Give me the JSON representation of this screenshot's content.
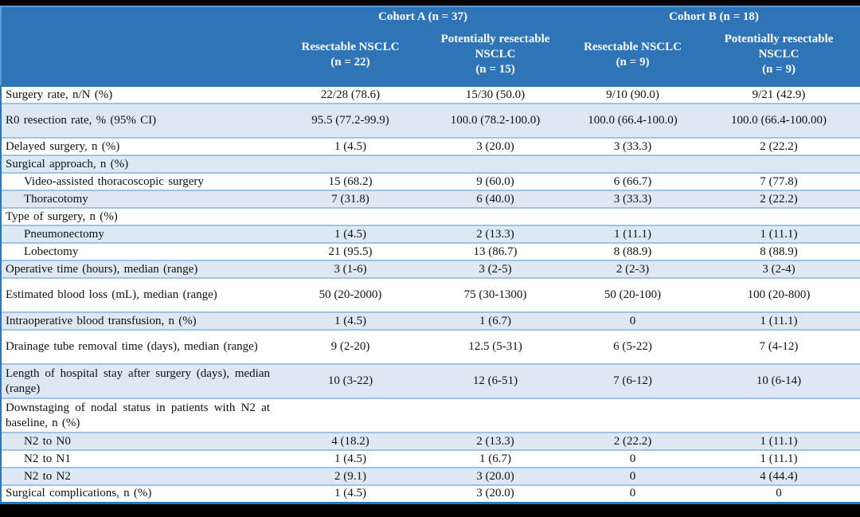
{
  "colors": {
    "header_bg": "#3074B8",
    "header_border": "#5B9BD5",
    "header_text": "#FFFFFF",
    "shaded_row_bg": "#DEE8F4",
    "row_separator": "#9DC3E6",
    "outer_border": "#2E75B6",
    "body_text": "#111111",
    "frame_bg": "#000000"
  },
  "table": {
    "cohorts": [
      {
        "label": "Cohort A (n = 37)"
      },
      {
        "label": "Cohort B (n = 18)"
      }
    ],
    "columns": [
      {
        "name": "Resectable NSCLC",
        "n": "(n = 22)"
      },
      {
        "name": "Potentially resectable NSCLC",
        "n": "(n = 15)"
      },
      {
        "name": "Resectable NSCLC",
        "n": "(n = 9)"
      },
      {
        "name": "Potentially resectable NSCLC",
        "n": "(n = 9)"
      }
    ],
    "rows": [
      {
        "label": "Surgery rate, n/N (%)",
        "indent": false,
        "tall": false,
        "values": [
          "22/28 (78.6)",
          "15/30 (50.0)",
          "9/10 (90.0)",
          "9/21 (42.9)"
        ]
      },
      {
        "label": "R0 resection rate, % (95% CI)",
        "indent": false,
        "tall": true,
        "values": [
          "95.5 (77.2-99.9)",
          "100.0 (78.2-100.0)",
          "100.0 (66.4-100.0)",
          "100.0 (66.4-100.00)"
        ]
      },
      {
        "label": "Delayed surgery, n (%)",
        "indent": false,
        "tall": false,
        "values": [
          "1 (4.5)",
          "3 (20.0)",
          "3 (33.3)",
          "2 (22.2)"
        ]
      },
      {
        "label": "Surgical approach, n (%)",
        "indent": false,
        "tall": false,
        "values": [
          "",
          "",
          "",
          ""
        ]
      },
      {
        "label": "Video-assisted thoracoscopic surgery",
        "indent": true,
        "tall": false,
        "values": [
          "15 (68.2)",
          "9 (60.0)",
          "6 (66.7)",
          "7 (77.8)"
        ]
      },
      {
        "label": "Thoracotomy",
        "indent": true,
        "tall": false,
        "values": [
          "7 (31.8)",
          "6 (40.0)",
          "3 (33.3)",
          "2 (22.2)"
        ]
      },
      {
        "label": "Type of surgery, n (%)",
        "indent": false,
        "tall": false,
        "values": [
          "",
          "",
          "",
          ""
        ]
      },
      {
        "label": "Pneumonectomy",
        "indent": true,
        "tall": false,
        "values": [
          "1 (4.5)",
          "2 (13.3)",
          "1 (11.1)",
          "1 (11.1)"
        ]
      },
      {
        "label": "Lobectomy",
        "indent": true,
        "tall": false,
        "values": [
          "21 (95.5)",
          "13 (86.7)",
          "8 (88.9)",
          "8 (88.9)"
        ]
      },
      {
        "label": "Operative time (hours), median (range)",
        "indent": false,
        "tall": false,
        "values": [
          "3 (1-6)",
          "3 (2-5)",
          "2 (2-3)",
          "3 (2-4)"
        ]
      },
      {
        "label": "Estimated blood loss (mL), median (range)",
        "indent": false,
        "tall": true,
        "values": [
          "50 (20-2000)",
          "75 (30-1300)",
          "50 (20-100)",
          "100 (20-800)"
        ]
      },
      {
        "label": "Intraoperative blood transfusion, n (%)",
        "indent": false,
        "tall": false,
        "values": [
          "1 (4.5)",
          "1 (6.7)",
          "0",
          "1 (11.1)"
        ]
      },
      {
        "label": "Drainage tube removal time (days), median (range)",
        "indent": false,
        "tall": true,
        "values": [
          "9 (2-20)",
          "12.5 (5-31)",
          "6 (5-22)",
          "7 (4-12)"
        ]
      },
      {
        "label": "Length of hospital stay after surgery (days), median (range)",
        "indent": false,
        "tall": true,
        "values": [
          "10 (3-22)",
          "12 (6-51)",
          "7 (6-12)",
          "10 (6-14)"
        ]
      },
      {
        "label": "Downstaging of nodal status in patients with N2 at baseline, n (%)",
        "indent": false,
        "tall": true,
        "values": [
          "",
          "",
          "",
          ""
        ]
      },
      {
        "label": "N2 to N0",
        "indent": true,
        "tall": false,
        "values": [
          "4 (18.2)",
          "2 (13.3)",
          "2 (22.2)",
          "1 (11.1)"
        ]
      },
      {
        "label": "N2 to N1",
        "indent": true,
        "tall": false,
        "values": [
          "1 (4.5)",
          "1 (6.7)",
          "0",
          "1 (11.1)"
        ]
      },
      {
        "label": "N2 to N2",
        "indent": true,
        "tall": false,
        "values": [
          "2 (9.1)",
          "3 (20.0)",
          "0",
          "4 (44.4)"
        ]
      },
      {
        "label": "Surgical complications, n (%)",
        "indent": false,
        "tall": false,
        "values": [
          "1 (4.5)",
          "3 (20.0)",
          "0",
          "0"
        ]
      }
    ]
  }
}
